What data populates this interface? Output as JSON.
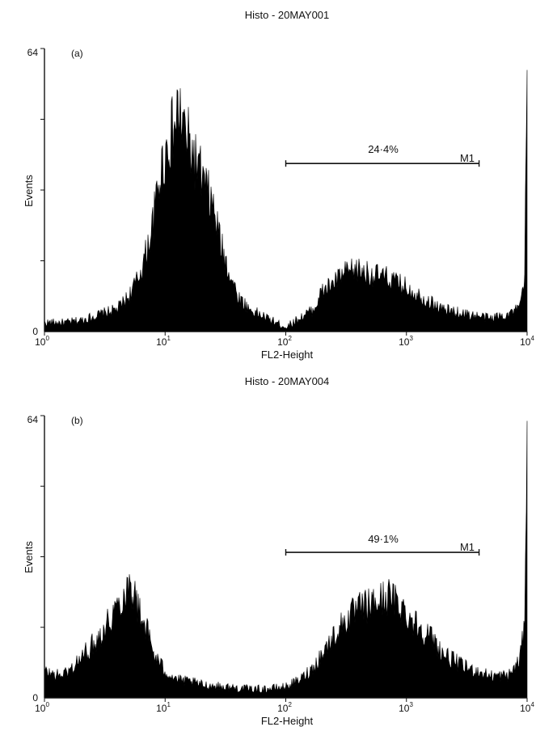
{
  "chart_data": [
    {
      "type": "area",
      "title": "Histo - 20MAY001",
      "panel_label": "(a)",
      "xlabel": "FL2-Height",
      "ylabel": "Events",
      "xscale": "log",
      "xlim": [
        1,
        10000
      ],
      "ylim": [
        0,
        64
      ],
      "x_ticks": [
        {
          "base": "10",
          "exp": "0"
        },
        {
          "base": "10",
          "exp": "1"
        },
        {
          "base": "10",
          "exp": "2"
        },
        {
          "base": "10",
          "exp": "3"
        },
        {
          "base": "10",
          "exp": "4"
        }
      ],
      "y_tick_labels": [
        "0",
        "64"
      ],
      "y_minor_ticks": [
        16,
        32,
        48
      ],
      "marker": {
        "name": "M1",
        "percent": "24·4%",
        "x_start": 100,
        "x_end": 4000,
        "y": 38
      },
      "color": "#000000",
      "series": [
        {
          "x": [
            1,
            1.5,
            2,
            3,
            4,
            5,
            6,
            7,
            8,
            9,
            10,
            11,
            12,
            13,
            14,
            15,
            17,
            20,
            25,
            30,
            40,
            50,
            70,
            100,
            130,
            170,
            200,
            250,
            300,
            400,
            500,
            700,
            1000,
            1500,
            2000,
            3000,
            5000,
            7000,
            8500,
            9500,
            10000
          ],
          "y": [
            2,
            2,
            2.5,
            4,
            5,
            8,
            12,
            18,
            25,
            35,
            40,
            44,
            46,
            50,
            47,
            44,
            40,
            35,
            28,
            18,
            8,
            5,
            3,
            1,
            3,
            5,
            9,
            11,
            13,
            14,
            13,
            12,
            10,
            7,
            5,
            4,
            3,
            4,
            5,
            10,
            56
          ]
        }
      ]
    },
    {
      "type": "area",
      "title": "Histo - 20MAY004",
      "panel_label": "(b)",
      "xlabel": "FL2-Height",
      "ylabel": "Events",
      "xscale": "log",
      "xlim": [
        1,
        10000
      ],
      "ylim": [
        0,
        64
      ],
      "x_ticks": [
        {
          "base": "10",
          "exp": "0"
        },
        {
          "base": "10",
          "exp": "1"
        },
        {
          "base": "10",
          "exp": "2"
        },
        {
          "base": "10",
          "exp": "3"
        },
        {
          "base": "10",
          "exp": "4"
        }
      ],
      "y_tick_labels": [
        "0",
        "64"
      ],
      "y_minor_ticks": [
        16,
        32,
        48
      ],
      "marker": {
        "name": "M1",
        "percent": "49·1%",
        "x_start": 100,
        "x_end": 4000,
        "y": 33
      },
      "color": "#000000",
      "series": [
        {
          "x": [
            1,
            1.3,
            1.6,
            2,
            2.5,
            3,
            3.5,
            4,
            4.5,
            5,
            5.5,
            6,
            7,
            8,
            10,
            13,
            17,
            20,
            30,
            50,
            70,
            100,
            130,
            170,
            200,
            250,
            300,
            400,
            500,
            600,
            700,
            800,
            900,
            1000,
            1300,
            1700,
            2000,
            3000,
            5000,
            7000,
            8500,
            9500,
            10000
          ],
          "y": [
            6,
            5,
            6,
            9,
            12,
            15,
            18,
            21,
            23,
            26,
            24,
            20,
            16,
            10,
            6,
            4,
            3.5,
            3,
            2.5,
            2,
            2,
            2.5,
            4,
            7,
            10,
            14,
            17,
            20,
            21,
            22,
            23,
            22,
            21,
            19,
            16,
            13,
            10,
            7,
            5,
            5,
            8,
            15,
            64
          ]
        }
      ]
    }
  ]
}
